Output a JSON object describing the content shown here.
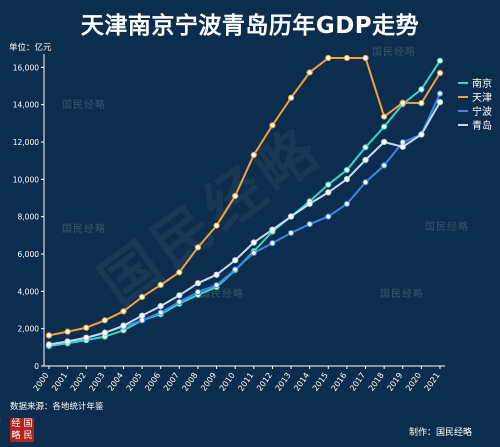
{
  "title": "天津南京宁波青岛历年GDP走势",
  "unit_label": "单位：亿元",
  "source": "数据来源：各地统计年鉴",
  "credit": "制作：国民经略",
  "watermark": "国民经略",
  "logo_chars": [
    "经",
    "国",
    "略",
    "民"
  ],
  "chart_data": {
    "type": "line",
    "x": [
      "2000",
      "2001",
      "2002",
      "2003",
      "2004",
      "2005",
      "2006",
      "2007",
      "2008",
      "2009",
      "2010",
      "2011",
      "2012",
      "2013",
      "2014",
      "2015",
      "2016",
      "2017",
      "2018",
      "2019",
      "2020",
      "2021"
    ],
    "y_ticks": [
      "0",
      "2,000",
      "4,000",
      "6,000",
      "8,000",
      "10,000",
      "12,000",
      "14,000",
      "16,000"
    ],
    "ylim": [
      0,
      16500
    ],
    "grid": false,
    "legend_position": "right",
    "series": [
      {
        "name": "南京",
        "color": "#3ad6c2",
        "values": [
          1073,
          1218,
          1385,
          1576,
          1910,
          2451,
          2774,
          3340,
          3814,
          4230,
          5131,
          6146,
          7202,
          8012,
          8821,
          9721,
          10503,
          11715,
          12820,
          14031,
          14818,
          16355
        ]
      },
      {
        "name": "天津",
        "color": "#f0a33a",
        "values": [
          1639,
          1840,
          2051,
          2448,
          2931,
          3698,
          4344,
          5018,
          6354,
          7522,
          9109,
          11307,
          12894,
          14370,
          15727,
          16538,
          17885,
          18549,
          13362,
          14104,
          14084,
          15695
        ]
      },
      {
        "name": "宁波",
        "color": "#3f86e6",
        "values": [
          1145,
          1311,
          1501,
          1787,
          2109,
          2447,
          2864,
          3433,
          3964,
          4329,
          5163,
          6059,
          6582,
          7128,
          7602,
          8003,
          8686,
          9842,
          10746,
          11985,
          12409,
          14595
        ]
      },
      {
        "name": "青岛",
        "color": "#c4daf2",
        "values": [
          1150,
          1316,
          1518,
          1780,
          2163,
          2696,
          3207,
          3787,
          4436,
          4890,
          5666,
          6616,
          7302,
          8007,
          8692,
          9300,
          10011,
          11037,
          12001,
          11741,
          12400,
          14136
        ]
      }
    ]
  }
}
